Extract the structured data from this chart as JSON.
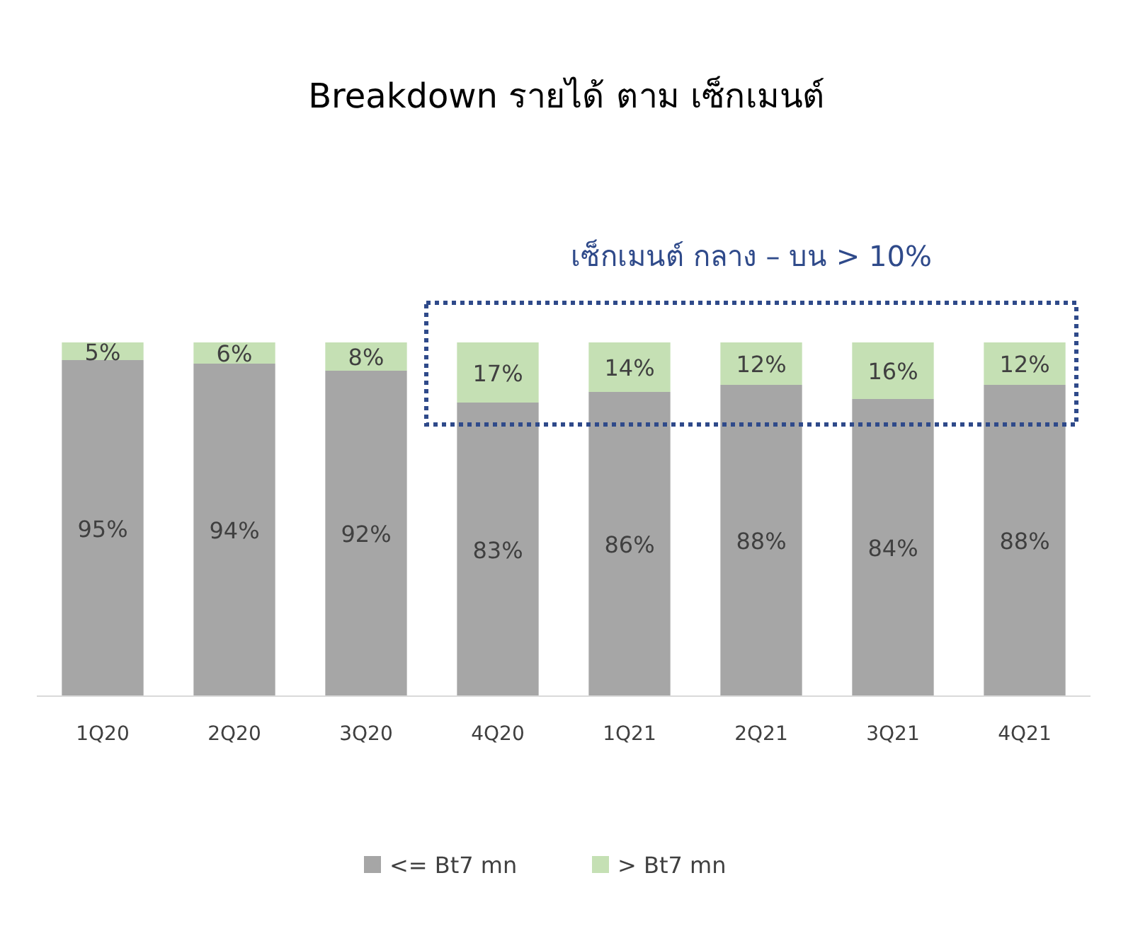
{
  "chart_data": {
    "type": "bar",
    "title": "Breakdown รายได้ ตาม เซ็กเมนต์",
    "categories": [
      "1Q20",
      "2Q20",
      "3Q20",
      "4Q20",
      "1Q21",
      "2Q21",
      "3Q21",
      "4Q21"
    ],
    "stacked": true,
    "legend": "bottom",
    "series": [
      {
        "name": "<= Bt7 mn",
        "color": "#a6a6a6",
        "values": [
          95,
          94,
          92,
          83,
          86,
          88,
          84,
          88
        ],
        "value_labels": [
          "95%",
          "94%",
          "92%",
          "83%",
          "86%",
          "88%",
          "84%",
          "88%"
        ]
      },
      {
        "name": "> Bt7 mn",
        "color": "#c5e0b4",
        "values": [
          5,
          6,
          8,
          17,
          14,
          12,
          16,
          12
        ],
        "value_labels": [
          "5%",
          "6%",
          "8%",
          "17%",
          "14%",
          "12%",
          "16%",
          "12%"
        ]
      }
    ],
    "annotations": [
      "เซ็กเมนต์ กลาง – บน > 10%"
    ]
  }
}
